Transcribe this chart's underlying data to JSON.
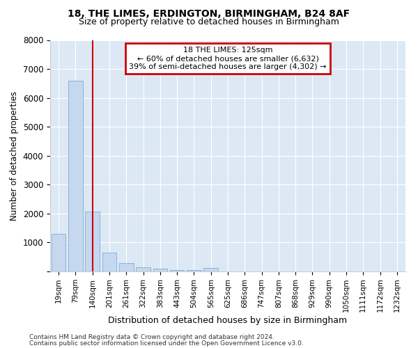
{
  "title1": "18, THE LIMES, ERDINGTON, BIRMINGHAM, B24 8AF",
  "title2": "Size of property relative to detached houses in Birmingham",
  "xlabel": "Distribution of detached houses by size in Birmingham",
  "ylabel": "Number of detached properties",
  "bar_labels": [
    "19sqm",
    "79sqm",
    "140sqm",
    "201sqm",
    "261sqm",
    "322sqm",
    "383sqm",
    "443sqm",
    "504sqm",
    "565sqm",
    "625sqm",
    "686sqm",
    "747sqm",
    "807sqm",
    "868sqm",
    "929sqm",
    "990sqm",
    "1050sqm",
    "1111sqm",
    "1172sqm",
    "1232sqm"
  ],
  "bar_values": [
    1300,
    6600,
    2080,
    660,
    300,
    140,
    90,
    50,
    50,
    110,
    0,
    0,
    0,
    0,
    0,
    0,
    0,
    0,
    0,
    0,
    0
  ],
  "bar_color": "#c5d8f0",
  "bar_edge_color": "#7aadd4",
  "red_line_x": 2,
  "annotation_text": "18 THE LIMES: 125sqm\n← 60% of detached houses are smaller (6,632)\n39% of semi-detached houses are larger (4,302) →",
  "annotation_box_color": "#ffffff",
  "annotation_box_edge_color": "#cc0000",
  "ylim": [
    0,
    8000
  ],
  "yticks": [
    0,
    1000,
    2000,
    3000,
    4000,
    5000,
    6000,
    7000,
    8000
  ],
  "bg_color": "#dde8f5",
  "fig_bg_color": "#ffffff",
  "grid_color": "#ffffff",
  "footer1": "Contains HM Land Registry data © Crown copyright and database right 2024.",
  "footer2": "Contains public sector information licensed under the Open Government Licence v3.0."
}
